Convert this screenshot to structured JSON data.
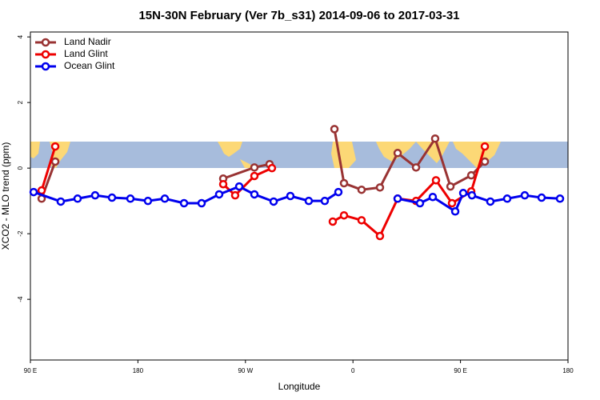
{
  "chart_data": {
    "type": "line",
    "title": "15N-30N February (Ver 7b_s31)   2014-09-06 to 2017-03-31",
    "x_label": "Longitude",
    "y_label": "XCO2 - MLO trend (ppm)",
    "xlim": [
      90,
      540
    ],
    "ylim": [
      -5.85,
      4.15
    ],
    "xticks": [
      {
        "value": 90,
        "label": "90 E"
      },
      180,
      {
        "value": 270,
        "label": "90 W"
      },
      {
        "value": 360,
        "label": "0"
      },
      {
        "value": 450,
        "label": "90 E"
      },
      {
        "value": 540,
        "label": "180"
      }
    ],
    "yticks": [
      -4,
      -2,
      0,
      2,
      4
    ],
    "legend": "top-left",
    "series": [
      {
        "name": "Land Nadir",
        "color": "#993333",
        "x": [
          99.4,
          110.8,
          null,
          251.4,
          277.5,
          290.2,
          null,
          344.5,
          352.5,
          367.2,
          382.6,
          397.4,
          412.8,
          428.8,
          441.6,
          459.0,
          470.4
        ],
        "values": [
          -0.93,
          0.2,
          null,
          -0.32,
          0.02,
          0.12,
          null,
          1.19,
          -0.46,
          -0.66,
          -0.59,
          0.46,
          0.02,
          0.9,
          -0.56,
          -0.22,
          0.2
        ]
      },
      {
        "name": "Land Glint",
        "color": "#ee0000",
        "x": [
          99.4,
          110.8,
          null,
          251.4,
          261.4,
          277.5,
          292.2,
          null,
          343.1,
          352.5,
          367.2,
          382.6,
          397.4,
          412.8,
          429.5,
          442.9,
          459.0,
          470.4
        ],
        "values": [
          -0.68,
          0.66,
          null,
          -0.49,
          -0.83,
          -0.24,
          0.0,
          null,
          -1.63,
          -1.44,
          -1.59,
          -2.07,
          -0.93,
          -1.0,
          -0.37,
          -1.07,
          -0.71,
          0.66
        ]
      },
      {
        "name": "Ocean Glint",
        "color": "#0000ee",
        "x": [
          92.7,
          115.4,
          129.5,
          144.2,
          158.3,
          173.7,
          188.4,
          202.5,
          218.6,
          233.3,
          248.0,
          264.8,
          277.5,
          293.6,
          307.6,
          323.0,
          336.4,
          347.8,
          null,
          397.4,
          416.1,
          426.8,
          445.6,
          452.3,
          459.6,
          475.0,
          489.1,
          503.8,
          517.9,
          533.3
        ],
        "values": [
          -0.73,
          -1.02,
          -0.93,
          -0.83,
          -0.9,
          -0.93,
          -1.0,
          -0.93,
          -1.07,
          -1.07,
          -0.8,
          -0.56,
          -0.8,
          -1.02,
          -0.85,
          -1.0,
          -1.0,
          -0.73,
          null,
          -0.93,
          -1.07,
          -0.88,
          -1.32,
          -0.76,
          -0.83,
          -1.02,
          -0.93,
          -0.83,
          -0.9,
          -0.93
        ]
      }
    ]
  }
}
